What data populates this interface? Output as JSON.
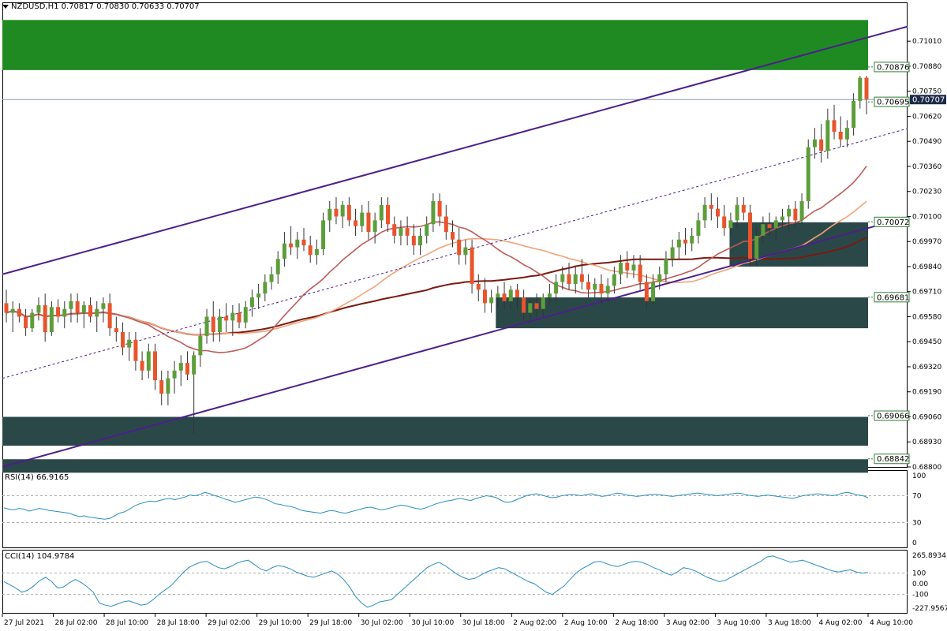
{
  "header": {
    "symbol": "NZDUSD,H1",
    "open": "0.70817",
    "high": "0.70830",
    "low": "0.70633",
    "close": "0.70707"
  },
  "price_axis": {
    "ticks": [
      "0.71010",
      "0.70880",
      "0.70750",
      "0.70620",
      "0.70490",
      "0.70360",
      "0.70230",
      "0.70100",
      "0.69970",
      "0.69840",
      "0.69710",
      "0.69580",
      "0.69450",
      "0.69320",
      "0.69190",
      "0.69060",
      "0.68930",
      "0.68800"
    ],
    "current_price": "0.70707",
    "level_labels": [
      "0.70876",
      "0.70695",
      "0.70072",
      "0.69681",
      "0.69066",
      "0.68842"
    ]
  },
  "time_axis": {
    "labels": [
      "27 Jul 2021",
      "28 Jul 02:00",
      "28 Jul 10:00",
      "28 Jul 18:00",
      "29 Jul 02:00",
      "29 Jul 10:00",
      "29 Jul 18:00",
      "30 Jul 02:00",
      "30 Jul 10:00",
      "30 Jul 18:00",
      "2 Aug 02:00",
      "2 Aug 10:00",
      "2 Aug 18:00",
      "3 Aug 02:00",
      "3 Aug 10:00",
      "3 Aug 18:00",
      "4 Aug 02:00",
      "4 Aug 10:00"
    ]
  },
  "rsi": {
    "label": "RSI(14) 66.9165",
    "ticks": [
      "100",
      "70",
      "30",
      "0"
    ]
  },
  "cci": {
    "label": "CCI(14) 104.9784",
    "ticks": [
      "265.8934",
      "100",
      "0.00",
      "-100",
      "-227.9567"
    ]
  },
  "colors": {
    "bull": "#5c9e3a",
    "bear": "#e8542c",
    "channel": "#4b1f8c",
    "supply_zone": "#1f8a22",
    "demand_zone": "#2b4848",
    "ma_fast": "#c05a55",
    "ma_mid": "#f2a37a",
    "ma_slow": "#7a1a10",
    "indicator_line": "#2a8fc0",
    "level_label": "#2e7d32"
  },
  "chart_data": {
    "type": "candlestick",
    "ylim": [
      0.688,
      0.7115
    ],
    "candles": [
      [
        0.6965,
        0.6972,
        0.6955,
        0.696
      ],
      [
        0.696,
        0.6966,
        0.695,
        0.6962
      ],
      [
        0.6962,
        0.6965,
        0.6955,
        0.6958
      ],
      [
        0.6958,
        0.6962,
        0.6948,
        0.6952
      ],
      [
        0.6952,
        0.6962,
        0.695,
        0.696
      ],
      [
        0.696,
        0.6968,
        0.6956,
        0.6964
      ],
      [
        0.6964,
        0.697,
        0.6945,
        0.695
      ],
      [
        0.695,
        0.6966,
        0.6948,
        0.6963
      ],
      [
        0.6963,
        0.6967,
        0.6955,
        0.6958
      ],
      [
        0.6958,
        0.6966,
        0.6952,
        0.6962
      ],
      [
        0.6962,
        0.697,
        0.6955,
        0.6966
      ],
      [
        0.6966,
        0.697,
        0.6955,
        0.696
      ],
      [
        0.696,
        0.6966,
        0.6952,
        0.6964
      ],
      [
        0.6964,
        0.6968,
        0.6955,
        0.6958
      ],
      [
        0.6958,
        0.6966,
        0.695,
        0.6962
      ],
      [
        0.6962,
        0.6968,
        0.6955,
        0.6965
      ],
      [
        0.6965,
        0.697,
        0.6948,
        0.6952
      ],
      [
        0.6952,
        0.6958,
        0.6945,
        0.695
      ],
      [
        0.695,
        0.6955,
        0.6938,
        0.6942
      ],
      [
        0.6942,
        0.695,
        0.6935,
        0.6946
      ],
      [
        0.6946,
        0.695,
        0.693,
        0.6935
      ],
      [
        0.6935,
        0.694,
        0.6925,
        0.693
      ],
      [
        0.693,
        0.6944,
        0.6926,
        0.694
      ],
      [
        0.694,
        0.6944,
        0.692,
        0.6925
      ],
      [
        0.6925,
        0.693,
        0.6912,
        0.6918
      ],
      [
        0.6918,
        0.693,
        0.6912,
        0.6926
      ],
      [
        0.6926,
        0.6935,
        0.6918,
        0.693
      ],
      [
        0.693,
        0.6938,
        0.6922,
        0.6934
      ],
      [
        0.6934,
        0.694,
        0.6925,
        0.6928
      ],
      [
        0.6928,
        0.694,
        0.6897,
        0.6938
      ],
      [
        0.6938,
        0.6952,
        0.6932,
        0.6948
      ],
      [
        0.6948,
        0.6962,
        0.6944,
        0.6958
      ],
      [
        0.6958,
        0.6966,
        0.6945,
        0.695
      ],
      [
        0.695,
        0.6962,
        0.6945,
        0.6958
      ],
      [
        0.6958,
        0.6965,
        0.695,
        0.6956
      ],
      [
        0.6956,
        0.6964,
        0.6948,
        0.696
      ],
      [
        0.696,
        0.6965,
        0.6952,
        0.6955
      ],
      [
        0.6955,
        0.6966,
        0.6952,
        0.6963
      ],
      [
        0.6963,
        0.6972,
        0.6958,
        0.6968
      ],
      [
        0.6968,
        0.6975,
        0.6962,
        0.697
      ],
      [
        0.697,
        0.698,
        0.6966,
        0.6976
      ],
      [
        0.6976,
        0.6984,
        0.6972,
        0.698
      ],
      [
        0.698,
        0.6992,
        0.6975,
        0.6988
      ],
      [
        0.6988,
        0.7002,
        0.6984,
        0.6996
      ],
      [
        0.6996,
        0.7005,
        0.699,
        0.6994
      ],
      [
        0.6994,
        0.7002,
        0.6988,
        0.6998
      ],
      [
        0.6998,
        0.7004,
        0.6992,
        0.6995
      ],
      [
        0.6995,
        0.7,
        0.6986,
        0.699
      ],
      [
        0.699,
        0.6998,
        0.6985,
        0.6993
      ],
      [
        0.6993,
        0.7012,
        0.699,
        0.7008
      ],
      [
        0.7008,
        0.7018,
        0.7002,
        0.7014
      ],
      [
        0.7014,
        0.702,
        0.7006,
        0.701
      ],
      [
        0.701,
        0.7018,
        0.7004,
        0.7016
      ],
      [
        0.7016,
        0.702,
        0.7005,
        0.7008
      ],
      [
        0.7008,
        0.7014,
        0.7,
        0.7005
      ],
      [
        0.7005,
        0.7016,
        0.7002,
        0.7012
      ],
      [
        0.7012,
        0.7018,
        0.6998,
        0.7002
      ],
      [
        0.7002,
        0.7012,
        0.6996,
        0.7008
      ],
      [
        0.7008,
        0.702,
        0.7004,
        0.7016
      ],
      [
        0.7016,
        0.702,
        0.7002,
        0.7006
      ],
      [
        0.7006,
        0.701,
        0.6996,
        0.7
      ],
      [
        0.7,
        0.7008,
        0.6995,
        0.7004
      ],
      [
        0.7004,
        0.701,
        0.6995,
        0.7
      ],
      [
        0.7,
        0.7006,
        0.699,
        0.6995
      ],
      [
        0.6995,
        0.7004,
        0.699,
        0.7
      ],
      [
        0.7,
        0.701,
        0.6996,
        0.7006
      ],
      [
        0.7006,
        0.7022,
        0.7002,
        0.7018
      ],
      [
        0.7018,
        0.7022,
        0.7005,
        0.701
      ],
      [
        0.701,
        0.7016,
        0.6998,
        0.7002
      ],
      [
        0.7002,
        0.7008,
        0.6994,
        0.6998
      ],
      [
        0.6998,
        0.7004,
        0.6985,
        0.699
      ],
      [
        0.699,
        0.6998,
        0.6985,
        0.6994
      ],
      [
        0.6994,
        0.6998,
        0.697,
        0.6975
      ],
      [
        0.6975,
        0.698,
        0.6966,
        0.6972
      ],
      [
        0.6972,
        0.6978,
        0.696,
        0.6965
      ],
      [
        0.6965,
        0.6972,
        0.696,
        0.6968
      ],
      [
        0.6968,
        0.6974,
        0.6962,
        0.697
      ],
      [
        0.697,
        0.6976,
        0.6962,
        0.6966
      ],
      [
        0.6966,
        0.6974,
        0.6962,
        0.6972
      ],
      [
        0.6972,
        0.6975,
        0.6962,
        0.6968
      ],
      [
        0.6968,
        0.6972,
        0.6956,
        0.696
      ],
      [
        0.696,
        0.6968,
        0.6955,
        0.6965
      ],
      [
        0.6965,
        0.697,
        0.6958,
        0.6962
      ],
      [
        0.6962,
        0.697,
        0.6958,
        0.6968
      ],
      [
        0.6968,
        0.6975,
        0.6964,
        0.697
      ],
      [
        0.697,
        0.698,
        0.6966,
        0.6976
      ],
      [
        0.6976,
        0.6984,
        0.6972,
        0.698
      ],
      [
        0.698,
        0.6986,
        0.6972,
        0.6975
      ],
      [
        0.6975,
        0.6984,
        0.697,
        0.698
      ],
      [
        0.698,
        0.6988,
        0.6972,
        0.6976
      ],
      [
        0.6976,
        0.698,
        0.6968,
        0.6972
      ],
      [
        0.6972,
        0.6978,
        0.6968,
        0.6975
      ],
      [
        0.6975,
        0.698,
        0.6965,
        0.697
      ],
      [
        0.697,
        0.6978,
        0.6966,
        0.6974
      ],
      [
        0.6974,
        0.6984,
        0.697,
        0.698
      ],
      [
        0.698,
        0.699,
        0.6975,
        0.6986
      ],
      [
        0.6986,
        0.6992,
        0.6978,
        0.6982
      ],
      [
        0.6982,
        0.699,
        0.6978,
        0.6985
      ],
      [
        0.6985,
        0.699,
        0.6972,
        0.6976
      ],
      [
        0.6976,
        0.698,
        0.6962,
        0.6966
      ],
      [
        0.6966,
        0.698,
        0.6964,
        0.6976
      ],
      [
        0.6976,
        0.6984,
        0.6972,
        0.698
      ],
      [
        0.698,
        0.6992,
        0.6976,
        0.6988
      ],
      [
        0.6988,
        0.6998,
        0.6984,
        0.6994
      ],
      [
        0.6994,
        0.7002,
        0.6988,
        0.6998
      ],
      [
        0.6998,
        0.7004,
        0.699,
        0.6996
      ],
      [
        0.6996,
        0.7004,
        0.6992,
        0.7
      ],
      [
        0.7,
        0.7012,
        0.6996,
        0.7008
      ],
      [
        0.7008,
        0.702,
        0.7004,
        0.7016
      ],
      [
        0.7016,
        0.7022,
        0.7008,
        0.7014
      ],
      [
        0.7014,
        0.702,
        0.7004,
        0.701
      ],
      [
        0.701,
        0.7016,
        0.7,
        0.7004
      ],
      [
        0.7004,
        0.7012,
        0.7,
        0.7008
      ],
      [
        0.7008,
        0.702,
        0.7004,
        0.7016
      ],
      [
        0.7016,
        0.702,
        0.7008,
        0.7012
      ],
      [
        0.7012,
        0.7016,
        0.6984,
        0.6988
      ],
      [
        0.6988,
        0.7004,
        0.6984,
        0.7
      ],
      [
        0.7,
        0.701,
        0.6996,
        0.7006
      ],
      [
        0.7006,
        0.7012,
        0.7,
        0.7004
      ],
      [
        0.7004,
        0.701,
        0.6998,
        0.7008
      ],
      [
        0.7008,
        0.7014,
        0.7004,
        0.701
      ],
      [
        0.701,
        0.7016,
        0.7002,
        0.7014
      ],
      [
        0.7014,
        0.7018,
        0.7004,
        0.7008
      ],
      [
        0.7008,
        0.7022,
        0.7006,
        0.7018
      ],
      [
        0.7018,
        0.705,
        0.7014,
        0.7046
      ],
      [
        0.7046,
        0.7056,
        0.704,
        0.705
      ],
      [
        0.705,
        0.7058,
        0.7038,
        0.7044
      ],
      [
        0.7044,
        0.7066,
        0.704,
        0.706
      ],
      [
        0.706,
        0.7068,
        0.705,
        0.7054
      ],
      [
        0.7054,
        0.7062,
        0.7046,
        0.705
      ],
      [
        0.705,
        0.706,
        0.7046,
        0.7056
      ],
      [
        0.7056,
        0.7074,
        0.7052,
        0.707
      ],
      [
        0.707,
        0.7083,
        0.7066,
        0.7082
      ],
      [
        0.7082,
        0.7083,
        0.7063,
        0.7071
      ]
    ],
    "channel": {
      "upper": [
        [
          0,
          0.698
        ],
        [
          1.0,
          0.7103
        ]
      ],
      "middle": [
        [
          0,
          0.6926
        ],
        [
          1.0,
          0.705
        ]
      ],
      "lower": [
        [
          0,
          0.688
        ],
        [
          1.0,
          0.7004
        ]
      ]
    },
    "zones": [
      {
        "kind": "supply",
        "top": 0.7112,
        "bottom": 0.7086,
        "from": 0.0
      },
      {
        "kind": "demand",
        "top": 0.7007,
        "bottom": 0.6984,
        "from": 0.84
      },
      {
        "kind": "demand",
        "top": 0.6968,
        "bottom": 0.6952,
        "from": 0.57
      },
      {
        "kind": "demand",
        "top": 0.6906,
        "bottom": 0.6891,
        "from": 0.0
      },
      {
        "kind": "demand",
        "top": 0.6884,
        "bottom": 0.6877,
        "from": 0.0
      }
    ],
    "level_values": [
      0.70876,
      0.70695,
      0.70072,
      0.69681,
      0.69066,
      0.68842
    ],
    "rsi_values": [
      52,
      50,
      49,
      51,
      50,
      47,
      49,
      51,
      50,
      48,
      47,
      46,
      45,
      44,
      41,
      39,
      40,
      38,
      37,
      36,
      35,
      36,
      40,
      44,
      46,
      50,
      55,
      58,
      60,
      62,
      61,
      63,
      65,
      66,
      64,
      66,
      68,
      71,
      70,
      72,
      75,
      73,
      70,
      68,
      65,
      63,
      60,
      62,
      64,
      66,
      68,
      67,
      65,
      62,
      58,
      57,
      55,
      54,
      52,
      49,
      47,
      46,
      45,
      44,
      46,
      48,
      47,
      45,
      44,
      46,
      48,
      50,
      52,
      53,
      51,
      49,
      50,
      52,
      54,
      56,
      55,
      53,
      51,
      50,
      52,
      55,
      58,
      60,
      62,
      63,
      65,
      66,
      64,
      63,
      66,
      68,
      70,
      69,
      67,
      63,
      60,
      61,
      64,
      67,
      70,
      72,
      73,
      71,
      69,
      67,
      68,
      70,
      71,
      72,
      71,
      70,
      72,
      73,
      71,
      69,
      70,
      72,
      74,
      73,
      71,
      70,
      69,
      70,
      71,
      72,
      72,
      71,
      70,
      69,
      70,
      71,
      72,
      73,
      74,
      73,
      72,
      71,
      70,
      71,
      72,
      73,
      74,
      73,
      71,
      70,
      69,
      70,
      71,
      70,
      69,
      68,
      67,
      66,
      68,
      70,
      71,
      72,
      73,
      72,
      71,
      70,
      72,
      74,
      75,
      73,
      71,
      70,
      67
    ],
    "cci_values": [
      20,
      -10,
      -40,
      -80,
      -60,
      -20,
      30,
      60,
      20,
      -40,
      -30,
      10,
      40,
      10,
      -30,
      -80,
      -180,
      -200,
      -210,
      -190,
      -170,
      -160,
      -180,
      -200,
      -190,
      -150,
      -100,
      -60,
      -20,
      40,
      100,
      150,
      180,
      200,
      210,
      180,
      150,
      140,
      160,
      190,
      210,
      220,
      180,
      140,
      120,
      150,
      170,
      160,
      140,
      110,
      90,
      70,
      60,
      80,
      100,
      120,
      90,
      40,
      -30,
      -120,
      -180,
      -220,
      -200,
      -170,
      -160,
      -150,
      -100,
      -50,
      0,
      50,
      100,
      150,
      180,
      200,
      170,
      130,
      90,
      60,
      40,
      50,
      80,
      110,
      130,
      150,
      140,
      110,
      80,
      50,
      20,
      0,
      -40,
      -80,
      -100,
      -60,
      -20,
      40,
      100,
      140,
      170,
      200,
      210,
      190,
      170,
      160,
      180,
      200,
      210,
      200,
      180,
      150,
      130,
      100,
      80,
      110,
      150,
      140,
      120,
      90,
      60,
      40,
      20,
      30,
      60,
      90,
      120,
      150,
      180,
      210,
      250,
      260,
      240,
      220,
      200,
      210,
      220,
      200,
      180,
      160,
      140,
      120,
      110,
      120,
      130,
      110,
      100,
      105
    ]
  }
}
